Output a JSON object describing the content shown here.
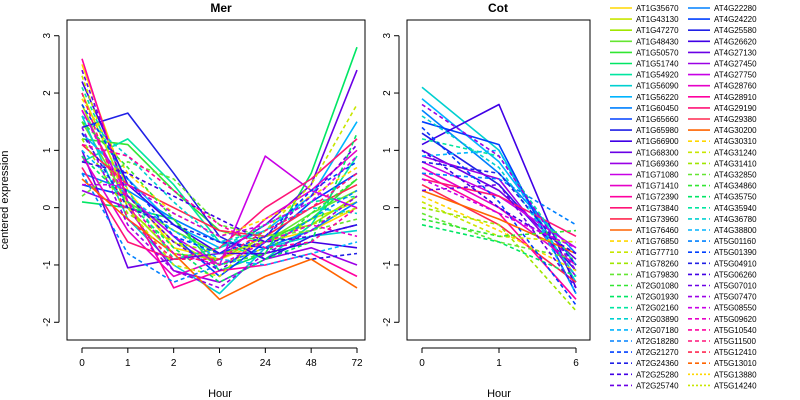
{
  "chart_data": [
    {
      "type": "line",
      "title": "Mer",
      "xlabel": "Hour",
      "ylabel": "centered expression",
      "categories": [
        "0",
        "1",
        "2",
        "6",
        "24",
        "48",
        "72"
      ],
      "ylim": [
        -2.1,
        3.1
      ],
      "yticks": [
        -2,
        -1,
        0,
        1,
        2,
        3
      ],
      "grid": false,
      "series": [
        {
          "values": [
            2.5,
            0.3,
            -0.7,
            -0.9,
            -0.6,
            -0.4,
            0.0
          ]
        },
        {
          "values": [
            2.0,
            0.2,
            -0.6,
            -1.0,
            -0.7,
            -0.2,
            0.1
          ]
        },
        {
          "values": [
            1.8,
            0.0,
            -0.8,
            -0.9,
            -0.5,
            -0.3,
            0.2
          ]
        },
        {
          "values": [
            1.5,
            0.1,
            -0.4,
            -0.8,
            -0.6,
            -0.1,
            0.3
          ]
        },
        {
          "values": [
            1.2,
            1.1,
            0.3,
            -0.4,
            -0.6,
            -0.2,
            0.5
          ]
        },
        {
          "values": [
            0.1,
            0.0,
            -0.2,
            -1.1,
            -0.8,
            0.6,
            2.8
          ]
        },
        {
          "values": [
            0.8,
            1.2,
            0.4,
            -0.6,
            -0.9,
            -0.3,
            0.9
          ]
        },
        {
          "values": [
            1.6,
            -0.2,
            -1.0,
            -1.5,
            -0.7,
            -0.5,
            -0.4
          ]
        },
        {
          "values": [
            1.3,
            0.5,
            -0.3,
            -0.7,
            -0.4,
            0.2,
            1.5
          ]
        },
        {
          "values": [
            0.6,
            0.3,
            -0.2,
            -0.6,
            -0.7,
            -0.4,
            0.1
          ]
        },
        {
          "values": [
            0.4,
            0.2,
            -0.5,
            -1.2,
            -0.6,
            0.1,
            0.6
          ]
        },
        {
          "values": [
            1.4,
            1.65,
            0.6,
            -0.5,
            -0.9,
            -0.5,
            -0.3
          ]
        },
        {
          "values": [
            2.2,
            0.4,
            -0.3,
            -0.8,
            -0.8,
            -0.6,
            -0.7
          ]
        },
        {
          "values": [
            1.0,
            -1.05,
            -0.9,
            -0.8,
            -0.3,
            0.4,
            2.4
          ]
        },
        {
          "values": [
            0.3,
            0.0,
            -1.1,
            -1.3,
            -0.9,
            -0.7,
            -1.0
          ]
        },
        {
          "values": [
            1.7,
            0.2,
            -0.5,
            -1.0,
            0.9,
            0.3,
            0.0
          ]
        },
        {
          "values": [
            0.9,
            -0.4,
            -1.2,
            -0.9,
            -0.2,
            0.3,
            1.0
          ]
        },
        {
          "values": [
            2.6,
            0.1,
            -1.4,
            -1.1,
            -1.0,
            -0.8,
            -1.2
          ]
        },
        {
          "values": [
            0.7,
            -0.6,
            -0.9,
            -0.7,
            0.0,
            0.5,
            1.2
          ]
        },
        {
          "values": [
            1.1,
            0.4,
            0.0,
            -0.4,
            -0.5,
            0.0,
            0.4
          ]
        },
        {
          "values": [
            0.5,
            -0.2,
            -0.8,
            -1.6,
            -1.2,
            -0.9,
            -1.4
          ]
        },
        {
          "values": [
            1.9,
            0.6,
            -0.1,
            -0.5,
            -0.2,
            0.2,
            0.7
          ]
        },
        {
          "values": [
            2.3,
            0.0,
            -1.0,
            -1.2,
            -0.4,
            0.4,
            1.8
          ]
        },
        {
          "values": [
            1.2,
            -0.1,
            -0.6,
            -0.8,
            -0.6,
            -0.3,
            0.0
          ]
        },
        {
          "values": [
            0.2,
            0.8,
            0.5,
            -0.3,
            -0.5,
            -0.4,
            -0.2
          ]
        },
        {
          "values": [
            1.5,
            0.7,
            -0.2,
            -1.0,
            -0.8,
            -0.1,
            0.5
          ]
        },
        {
          "values": [
            0.9,
            0.1,
            -0.7,
            -1.3,
            -0.9,
            -0.6,
            1.3
          ]
        },
        {
          "values": [
            2.1,
            0.3,
            -0.9,
            -0.7,
            -0.3,
            0.1,
            0.2
          ]
        },
        {
          "values": [
            1.6,
            0.9,
            0.1,
            -0.6,
            -0.4,
            0.0,
            -0.1
          ]
        },
        {
          "values": [
            1.0,
            0.2,
            -0.4,
            -0.9,
            -1.0,
            -0.8,
            -0.6
          ]
        },
        {
          "values": [
            0.6,
            -0.8,
            -1.3,
            -1.0,
            -0.7,
            -0.2,
            0.3
          ]
        },
        {
          "values": [
            1.8,
            0.5,
            -0.5,
            -0.8,
            -0.5,
            0.3,
            0.8
          ]
        },
        {
          "values": [
            1.3,
            0.0,
            -0.3,
            -0.6,
            -0.7,
            -0.9,
            -0.8
          ]
        },
        {
          "values": [
            0.8,
            0.6,
            0.2,
            -0.2,
            -0.6,
            -0.5,
            -0.3
          ]
        },
        {
          "values": [
            2.4,
            0.2,
            -0.6,
            -1.1,
            -0.5,
            0.2,
            1.1
          ]
        },
        {
          "values": [
            1.4,
            -0.3,
            -1.1,
            -1.4,
            -0.8,
            -0.4,
            0.2
          ]
        },
        {
          "values": [
            0.4,
            0.4,
            -0.1,
            -0.5,
            -0.3,
            0.1,
            0.9
          ]
        },
        {
          "values": [
            1.7,
            0.1,
            -0.8,
            -1.0,
            -0.6,
            -0.3,
            -0.5
          ]
        },
        {
          "values": [
            1.1,
            0.9,
            0.3,
            -0.3,
            -0.7,
            -0.6,
            0.0
          ]
        },
        {
          "values": [
            2.0,
            -0.2,
            -0.9,
            -0.9,
            -0.4,
            0.0,
            0.6
          ]
        }
      ]
    },
    {
      "type": "line",
      "title": "Cot",
      "xlabel": "Hour",
      "categories": [
        "0",
        "1",
        "6"
      ],
      "ylim": [
        -2.1,
        3.1
      ],
      "yticks": [
        -2,
        -1,
        0,
        1,
        2,
        3
      ],
      "grid": false,
      "series": [
        {
          "values": [
            2.1,
            1.0,
            -1.3
          ]
        },
        {
          "values": [
            1.9,
            0.8,
            -1.0
          ]
        },
        {
          "values": [
            1.7,
            0.6,
            -0.8
          ]
        },
        {
          "values": [
            1.5,
            1.1,
            -1.5
          ]
        },
        {
          "values": [
            1.3,
            0.4,
            -1.1
          ]
        },
        {
          "values": [
            1.1,
            1.8,
            -1.4
          ]
        },
        {
          "values": [
            1.0,
            0.3,
            -0.9
          ]
        },
        {
          "values": [
            0.9,
            0.5,
            -1.2
          ]
        },
        {
          "values": [
            0.8,
            0.2,
            -0.7
          ]
        },
        {
          "values": [
            0.7,
            0.0,
            -1.0
          ]
        },
        {
          "values": [
            0.6,
            -0.1,
            -1.6
          ]
        },
        {
          "values": [
            0.5,
            0.2,
            -0.5
          ]
        },
        {
          "values": [
            0.4,
            -0.3,
            -1.3
          ]
        },
        {
          "values": [
            0.3,
            -0.2,
            -0.8
          ]
        },
        {
          "values": [
            0.2,
            -0.4,
            -1.1
          ]
        },
        {
          "values": [
            0.1,
            -0.5,
            -0.6
          ]
        },
        {
          "values": [
            0.0,
            -0.3,
            -1.8
          ]
        },
        {
          "values": [
            -0.1,
            -0.6,
            -0.9
          ]
        },
        {
          "values": [
            -0.2,
            -0.5,
            -0.4
          ]
        },
        {
          "values": [
            -0.3,
            -0.6,
            -1.2
          ]
        },
        {
          "values": [
            1.2,
            0.9,
            -1.0
          ]
        },
        {
          "values": [
            1.6,
            0.7,
            -1.2
          ]
        },
        {
          "values": [
            0.9,
            1.0,
            -1.5
          ]
        },
        {
          "values": [
            0.6,
            0.5,
            -0.3
          ]
        },
        {
          "values": [
            1.4,
            0.1,
            -1.7
          ]
        },
        {
          "values": [
            0.8,
            0.6,
            -1.0
          ]
        },
        {
          "values": [
            1.0,
            0.0,
            -0.8
          ]
        },
        {
          "values": [
            0.3,
            0.4,
            -1.4
          ]
        },
        {
          "values": [
            1.8,
            0.9,
            -1.1
          ]
        },
        {
          "values": [
            0.5,
            -0.1,
            -0.7
          ]
        }
      ]
    }
  ],
  "legend": {
    "left": [
      "AT1G35670",
      "AT1G43130",
      "AT1G47270",
      "AT1G48430",
      "AT1G50570",
      "AT1G51740",
      "AT1G54920",
      "AT1G56090",
      "AT1G56220",
      "AT1G60450",
      "AT1G65660",
      "AT1G65980",
      "AT1G66900",
      "AT1G68300",
      "AT1G69360",
      "AT1G71080",
      "AT1G71410",
      "AT1G72390",
      "AT1G73840",
      "AT1G73960",
      "AT1G76460",
      "AT1G76850",
      "AT1G77710",
      "AT1G78260",
      "AT1G79830",
      "AT2G01080",
      "AT2G01930",
      "AT2G02160",
      "AT2G03890",
      "AT2G07180",
      "AT2G18280",
      "AT2G21270",
      "AT2G24360",
      "AT2G25280",
      "AT2G25740"
    ],
    "right": [
      "AT4G22280",
      "AT4G24220",
      "AT4G25580",
      "AT4G26620",
      "AT4G27130",
      "AT4G27450",
      "AT4G27750",
      "AT4G28760",
      "AT4G28910",
      "AT4G29190",
      "AT4G29380",
      "AT4G30200",
      "AT4G30310",
      "AT4G31240",
      "AT4G31410",
      "AT4G32850",
      "AT4G34860",
      "AT4G35750",
      "AT4G35940",
      "AT4G36780",
      "AT4G38800",
      "AT5G01160",
      "AT5G01390",
      "AT5G04910",
      "AT5G06260",
      "AT5G07010",
      "AT5G07470",
      "AT5G08550",
      "AT5G09620",
      "AT5G10540",
      "AT5G11500",
      "AT5G12410",
      "AT5G13010",
      "AT5G13880",
      "AT5G14240"
    ]
  }
}
